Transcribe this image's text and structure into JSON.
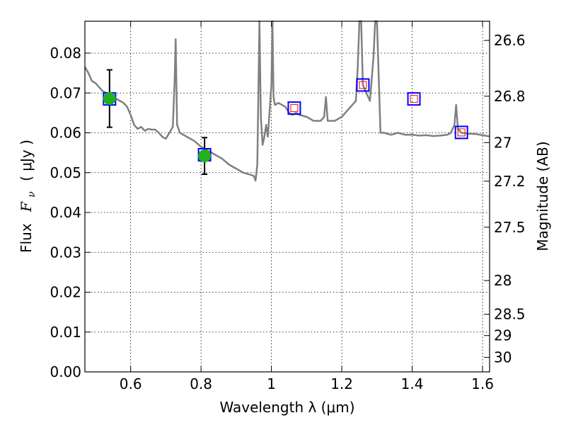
{
  "chart_data": {
    "type": "scatter",
    "xlabel": "Wavelength  λ (μm)",
    "ylabel_prefix": "Flux",
    "ylabel_symbol": "F",
    "ylabel_subscript": "ν",
    "ylabel_unit": "( μJy )",
    "y2label": "Magnitude (AB)",
    "xlim": [
      0.47,
      1.62
    ],
    "ylim": [
      0.0,
      0.088
    ],
    "xticks": [
      0.6,
      0.8,
      1.0,
      1.2,
      1.4,
      1.6
    ],
    "xtick_labels": [
      "0.6",
      "0.8",
      "1",
      "1.2",
      "1.4",
      "1.6"
    ],
    "yticks": [
      0.0,
      0.01,
      0.02,
      0.03,
      0.04,
      0.05,
      0.06,
      0.07,
      0.08
    ],
    "ytick_labels": [
      "0.00",
      "0.01",
      "0.02",
      "0.03",
      "0.04",
      "0.05",
      "0.06",
      "0.07",
      "0.08"
    ],
    "mag_ticks": [
      26.6,
      26.8,
      27,
      27.2,
      27.5,
      28,
      28.5,
      29,
      30
    ],
    "mag_tick_labels": [
      "26.6",
      "26.8",
      "27",
      "27.2",
      "27.5",
      "28",
      "28.5",
      "29",
      "30"
    ],
    "grid": true,
    "colors": {
      "spectrum": "#808080",
      "observed": "#20b020",
      "model_box": "#0000ff",
      "model_inner": "#ff0000",
      "errorbar": "#000000"
    },
    "series": [
      {
        "name": "model spectrum",
        "type": "line",
        "x": [
          0.47,
          0.48,
          0.49,
          0.5,
          0.51,
          0.52,
          0.53,
          0.54,
          0.55,
          0.56,
          0.57,
          0.58,
          0.59,
          0.6,
          0.61,
          0.62,
          0.63,
          0.64,
          0.65,
          0.66,
          0.67,
          0.68,
          0.69,
          0.7,
          0.71,
          0.72,
          0.725,
          0.728,
          0.732,
          0.74,
          0.76,
          0.78,
          0.8,
          0.82,
          0.84,
          0.86,
          0.88,
          0.9,
          0.92,
          0.94,
          0.95,
          0.955,
          0.96,
          0.963,
          0.966,
          0.97,
          0.975,
          0.98,
          0.985,
          0.99,
          1.0,
          1.003,
          1.006,
          1.01,
          1.02,
          1.03,
          1.04,
          1.05,
          1.06,
          1.07,
          1.08,
          1.1,
          1.12,
          1.14,
          1.15,
          1.155,
          1.16,
          1.18,
          1.2,
          1.22,
          1.24,
          1.245,
          1.25,
          1.255,
          1.26,
          1.27,
          1.28,
          1.29,
          1.295,
          1.3,
          1.305,
          1.31,
          1.32,
          1.34,
          1.36,
          1.38,
          1.4,
          1.42,
          1.44,
          1.46,
          1.48,
          1.5,
          1.51,
          1.52,
          1.525,
          1.53,
          1.54,
          1.56,
          1.58,
          1.6,
          1.62
        ],
        "values": [
          0.0765,
          0.075,
          0.073,
          0.0725,
          0.0715,
          0.0705,
          0.07,
          0.069,
          0.068,
          0.0685,
          0.068,
          0.0675,
          0.0665,
          0.0645,
          0.062,
          0.061,
          0.0615,
          0.0605,
          0.061,
          0.0608,
          0.0608,
          0.06,
          0.059,
          0.0585,
          0.06,
          0.0615,
          0.073,
          0.0835,
          0.062,
          0.06,
          0.059,
          0.058,
          0.0565,
          0.0555,
          0.0545,
          0.0535,
          0.052,
          0.051,
          0.05,
          0.0495,
          0.0492,
          0.048,
          0.052,
          0.07,
          0.088,
          0.064,
          0.057,
          0.059,
          0.062,
          0.059,
          0.072,
          0.088,
          0.069,
          0.067,
          0.0675,
          0.067,
          0.0665,
          0.065,
          0.0645,
          0.065,
          0.0645,
          0.064,
          0.063,
          0.063,
          0.064,
          0.069,
          0.063,
          0.063,
          0.064,
          0.066,
          0.068,
          0.076,
          0.088,
          0.088,
          0.072,
          0.07,
          0.068,
          0.079,
          0.088,
          0.088,
          0.074,
          0.06,
          0.06,
          0.0595,
          0.06,
          0.0595,
          0.0595,
          0.0593,
          0.0594,
          0.0592,
          0.0593,
          0.0595,
          0.06,
          0.062,
          0.067,
          0.061,
          0.06,
          0.0598,
          0.0597,
          0.0594,
          0.0591
        ]
      },
      {
        "name": "observed photometry",
        "type": "scatter",
        "x": [
          0.54,
          0.81
        ],
        "values": [
          0.0686,
          0.0542
        ],
        "yerr": [
          0.0072,
          0.0046
        ]
      },
      {
        "name": "model photometry",
        "type": "scatter",
        "x": [
          0.54,
          0.81,
          1.065,
          1.26,
          1.405,
          1.54
        ],
        "values": [
          0.0685,
          0.0545,
          0.0662,
          0.072,
          0.0685,
          0.0601
        ]
      }
    ]
  }
}
